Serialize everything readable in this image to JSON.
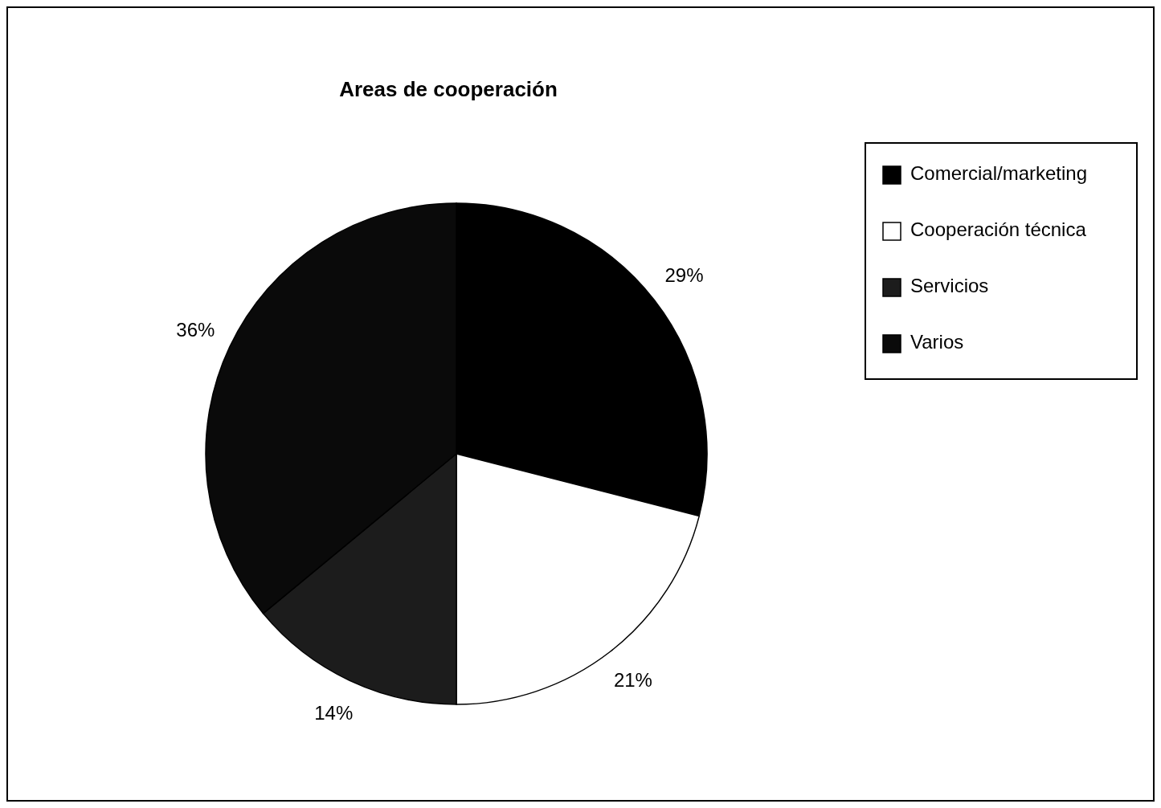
{
  "chart_data": {
    "type": "pie",
    "title": "Areas de cooperación",
    "categories": [
      "Comercial/marketing",
      "Cooperación técnica",
      "Servicios",
      "Varios"
    ],
    "values": [
      29,
      21,
      14,
      36
    ],
    "colors": [
      "#000000",
      "#ffffff",
      "#1c1c1c",
      "#0a0a0a"
    ],
    "value_labels": [
      "29%",
      "21%",
      "14%",
      "36%"
    ],
    "legend": "right"
  }
}
